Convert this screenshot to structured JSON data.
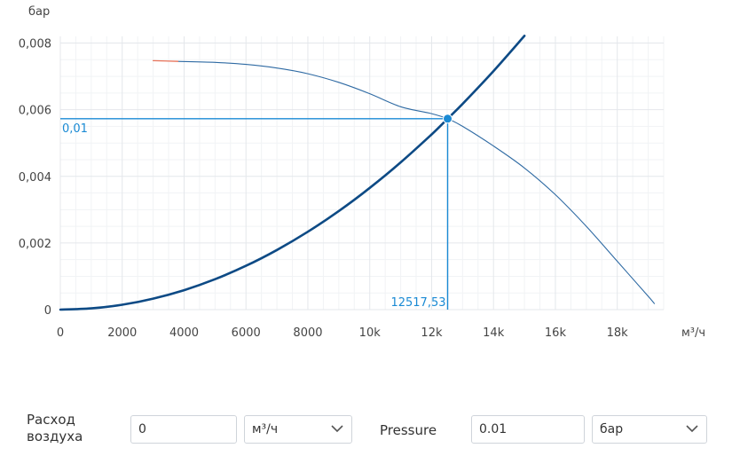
{
  "chart_data": {
    "type": "line",
    "x_unit": "м³/ч",
    "y_unit": "бар",
    "xlim": [
      0,
      19500
    ],
    "ylim": [
      0,
      0.0082
    ],
    "x_ticks": [
      {
        "v": 0,
        "label": "0"
      },
      {
        "v": 2000,
        "label": "2000"
      },
      {
        "v": 4000,
        "label": "4000"
      },
      {
        "v": 6000,
        "label": "6000"
      },
      {
        "v": 8000,
        "label": "8000"
      },
      {
        "v": 10000,
        "label": "10k"
      },
      {
        "v": 12000,
        "label": "12k"
      },
      {
        "v": 14000,
        "label": "14k"
      },
      {
        "v": 16000,
        "label": "16k"
      },
      {
        "v": 18000,
        "label": "18k"
      }
    ],
    "y_ticks": [
      {
        "v": 0,
        "label": "0"
      },
      {
        "v": 0.002,
        "label": "0,002"
      },
      {
        "v": 0.004,
        "label": "0,004"
      },
      {
        "v": 0.006,
        "label": "0,006"
      },
      {
        "v": 0.008,
        "label": "0,008"
      }
    ],
    "grid": true,
    "series": [
      {
        "role": "system-curve",
        "color": "#0d4a85",
        "x": [
          0,
          1000,
          2000,
          3000,
          4000,
          5000,
          6000,
          7000,
          8000,
          9000,
          10000,
          11000,
          12000,
          12517.53,
          13000,
          14000,
          15000
        ],
        "y": [
          0,
          3.65e-05,
          0.000146,
          0.000329,
          0.000584,
          0.000913,
          0.001314,
          0.001789,
          0.002337,
          0.002958,
          0.003652,
          0.004419,
          0.005259,
          0.00573,
          0.006172,
          0.007158,
          0.008217
        ]
      },
      {
        "role": "fan-curve",
        "color": "#2e6aa3",
        "x": [
          3800,
          5000,
          6000,
          7000,
          8000,
          9000,
          10000,
          11000,
          12000,
          12517.53,
          13000,
          14000,
          15000,
          16000,
          17000,
          18000,
          19000,
          19200
        ],
        "y": [
          0.00745,
          0.00742,
          0.00736,
          0.00725,
          0.00708,
          0.00682,
          0.00648,
          0.00609,
          0.00588,
          0.00573,
          0.0055,
          0.00491,
          0.00425,
          0.00345,
          0.0025,
          0.00145,
          0.0004,
          0.00018
        ]
      },
      {
        "role": "fan-curve-extension",
        "color": "#e8735a",
        "x": [
          3000,
          3800
        ],
        "y": [
          0.00747,
          0.00745
        ]
      }
    ],
    "operating_point": {
      "x": 12517.53,
      "y": 0.00573,
      "x_label": "12517,53",
      "y_label": "0,01",
      "color": "#1a8ad4"
    }
  },
  "controls": {
    "airflow_label_line1": "Расход",
    "airflow_label_line2": "воздуха",
    "airflow_value": "0",
    "airflow_unit": "м³/ч",
    "pressure_label": "Pressure",
    "pressure_value": "0.01",
    "pressure_unit": "бар"
  }
}
